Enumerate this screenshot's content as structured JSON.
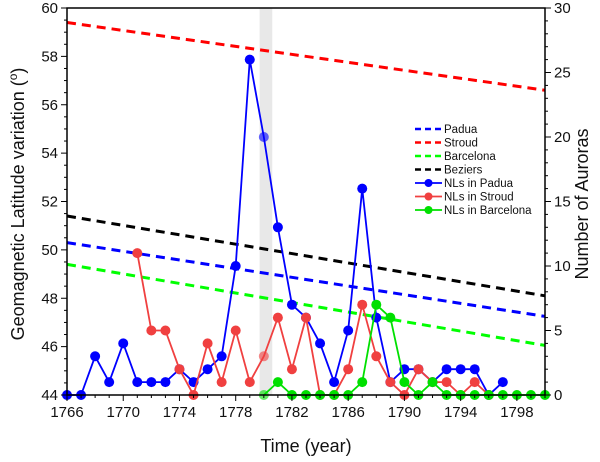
{
  "chart_data": {
    "type": "line",
    "xlabel": "Time (year)",
    "ylabel_left": "Geomagnetic Latitude variation (",
    "ylabel_left_sup": "o",
    "ylabel_left_end": ")",
    "ylabel_right": "Number of Auroras",
    "xlim": [
      1766,
      1800
    ],
    "ylim_left": [
      44,
      60
    ],
    "ylim_right": [
      0,
      30
    ],
    "xticks": [
      1766,
      1770,
      1774,
      1778,
      1782,
      1786,
      1790,
      1794,
      1798
    ],
    "yticks_left": [
      44,
      46,
      48,
      50,
      52,
      54,
      56,
      58,
      60
    ],
    "yticks_right": [
      0,
      5,
      10,
      15,
      20,
      25,
      30
    ],
    "highlight_band": [
      1779.7,
      1780.6
    ],
    "legend_position": "upper-right",
    "latitude_series": [
      {
        "name": "Padua",
        "color": "#0000ff",
        "x": [
          1766,
          1800
        ],
        "y": [
          50.3,
          47.25
        ]
      },
      {
        "name": "Stroud",
        "color": "#ff0000",
        "x": [
          1766,
          1800
        ],
        "y": [
          59.4,
          56.6
        ]
      },
      {
        "name": "Barcelona",
        "color": "#00ff00",
        "x": [
          1766,
          1800
        ],
        "y": [
          49.4,
          46.05
        ]
      },
      {
        "name": "Beziers",
        "color": "#000000",
        "x": [
          1766,
          1800
        ],
        "y": [
          51.4,
          48.1
        ]
      }
    ],
    "aurora_series": [
      {
        "name": "NLs in Padua",
        "color": "#0000ff",
        "x": [
          1766,
          1767,
          1768,
          1769,
          1770,
          1771,
          1772,
          1773,
          1774,
          1775,
          1776,
          1777,
          1778,
          1779,
          1780,
          1781,
          1782,
          1783,
          1784,
          1785,
          1786,
          1787,
          1788,
          1789,
          1790,
          1791,
          1792,
          1793,
          1794,
          1795,
          1796,
          1797
        ],
        "y": [
          0,
          0,
          3,
          1,
          4,
          1,
          1,
          1,
          2,
          1,
          2,
          3,
          10,
          26,
          20,
          13,
          7,
          6,
          4,
          1,
          5,
          16,
          6,
          1,
          2,
          2,
          1,
          2,
          2,
          2,
          0,
          1
        ]
      },
      {
        "name": "NLs in Stroud",
        "color": "#f04040",
        "x": [
          1771,
          1772,
          1773,
          1774,
          1775,
          1776,
          1777,
          1778,
          1779,
          1780,
          1781,
          1782,
          1783,
          1784,
          1785,
          1786,
          1787,
          1788,
          1789,
          1790,
          1791,
          1792,
          1793,
          1794,
          1795,
          1796
        ],
        "y": [
          11,
          5,
          5,
          2,
          0,
          4,
          1,
          5,
          1,
          3,
          6,
          2,
          6,
          0,
          0,
          2,
          7,
          3,
          1,
          0,
          2,
          1,
          1,
          0,
          1,
          0
        ]
      },
      {
        "name": "NLs in Barcelona",
        "color": "#00e000",
        "x": [
          1780,
          1781,
          1782,
          1783,
          1784,
          1785,
          1786,
          1787,
          1788,
          1789,
          1790,
          1791,
          1792,
          1793,
          1794,
          1795,
          1796,
          1797,
          1798,
          1799,
          1800
        ],
        "y": [
          0,
          1,
          0,
          0,
          0,
          0,
          0,
          1,
          7,
          6,
          1,
          0,
          1,
          0,
          0,
          0,
          0,
          0,
          0,
          0,
          0
        ]
      }
    ]
  }
}
